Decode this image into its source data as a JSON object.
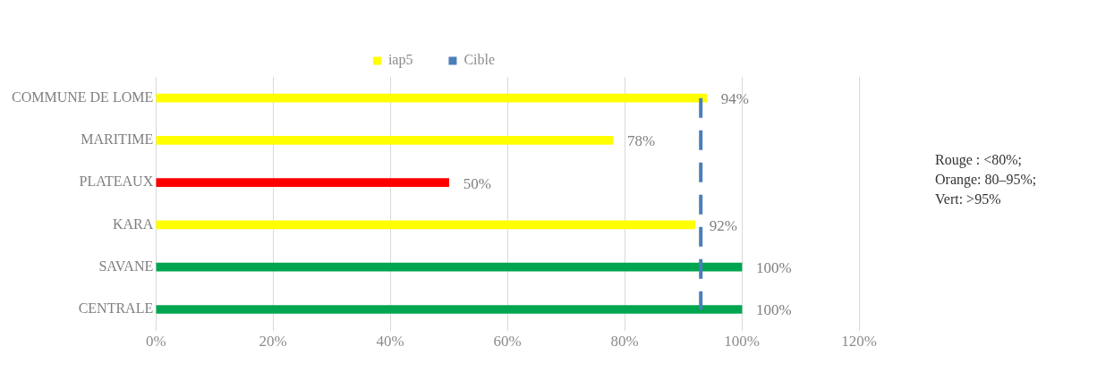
{
  "chart_data": {
    "type": "bar",
    "orientation": "horizontal",
    "categories": [
      "COMMUNE DE LOME",
      "MARITIME",
      "PLATEAUX",
      "KARA",
      "SAVANE",
      "CENTRALE"
    ],
    "series": [
      {
        "name": "iap5",
        "values": [
          94,
          78,
          50,
          92,
          100,
          100
        ],
        "colors": [
          "#ffff00",
          "#ffff00",
          "#ff0000",
          "#ffff00",
          "#00a550",
          "#00a550"
        ],
        "value_labels": [
          "94%",
          "78%",
          "50%",
          "92%",
          "100%",
          "100%"
        ]
      },
      {
        "name": "Cible",
        "type": "line",
        "values": [
          93,
          93,
          93,
          93,
          93,
          93
        ],
        "color": "#4a7ebb",
        "line_style": "dashed",
        "marker": "none"
      }
    ],
    "xlim": [
      0,
      120
    ],
    "xticks": [
      {
        "value": 0,
        "label": "0%"
      },
      {
        "value": 20,
        "label": "20%"
      },
      {
        "value": 40,
        "label": "40%"
      },
      {
        "value": 60,
        "label": "60%"
      },
      {
        "value": 80,
        "label": "80%"
      },
      {
        "value": 100,
        "label": "100%"
      },
      {
        "value": 120,
        "label": "120%"
      }
    ],
    "grid": "x",
    "legend": "top",
    "annotations": [
      "Rouge : <80%;",
      "Orange: 80–95%;",
      "Vert: >95%"
    ]
  }
}
